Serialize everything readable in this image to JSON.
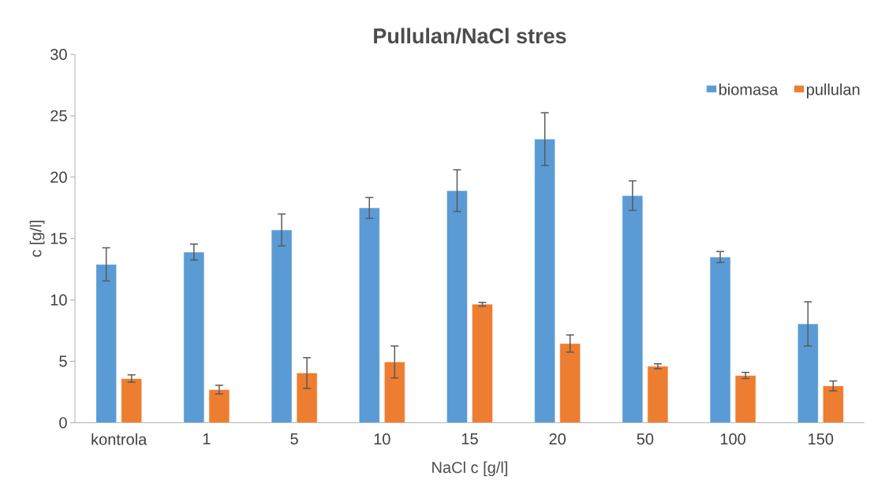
{
  "chart_data": {
    "type": "bar",
    "title": "Pullulan/NaCl stres",
    "xlabel": "NaCl c [g/l]",
    "ylabel": "c [g/l]",
    "categories": [
      "kontrola",
      "1",
      "5",
      "10",
      "15",
      "20",
      "50",
      "100",
      "150"
    ],
    "series": [
      {
        "name": "biomasa",
        "color": "#5b9bd5",
        "values": [
          12.9,
          13.9,
          15.7,
          17.5,
          18.9,
          23.1,
          18.5,
          13.5,
          8.05
        ],
        "errors": [
          1.35,
          0.65,
          1.3,
          0.85,
          1.7,
          2.15,
          1.2,
          0.45,
          1.8
        ]
      },
      {
        "name": "pullulan",
        "color": "#ed7d31",
        "values": [
          3.6,
          2.7,
          4.05,
          4.95,
          9.65,
          6.45,
          4.6,
          3.85,
          3.0
        ],
        "errors": [
          0.3,
          0.35,
          1.25,
          1.3,
          0.15,
          0.7,
          0.2,
          0.25,
          0.4
        ]
      }
    ],
    "ylim": [
      0,
      30
    ],
    "yticks": [
      0,
      5,
      10,
      15,
      20,
      25,
      30
    ],
    "grid": false,
    "legend": "top right"
  }
}
